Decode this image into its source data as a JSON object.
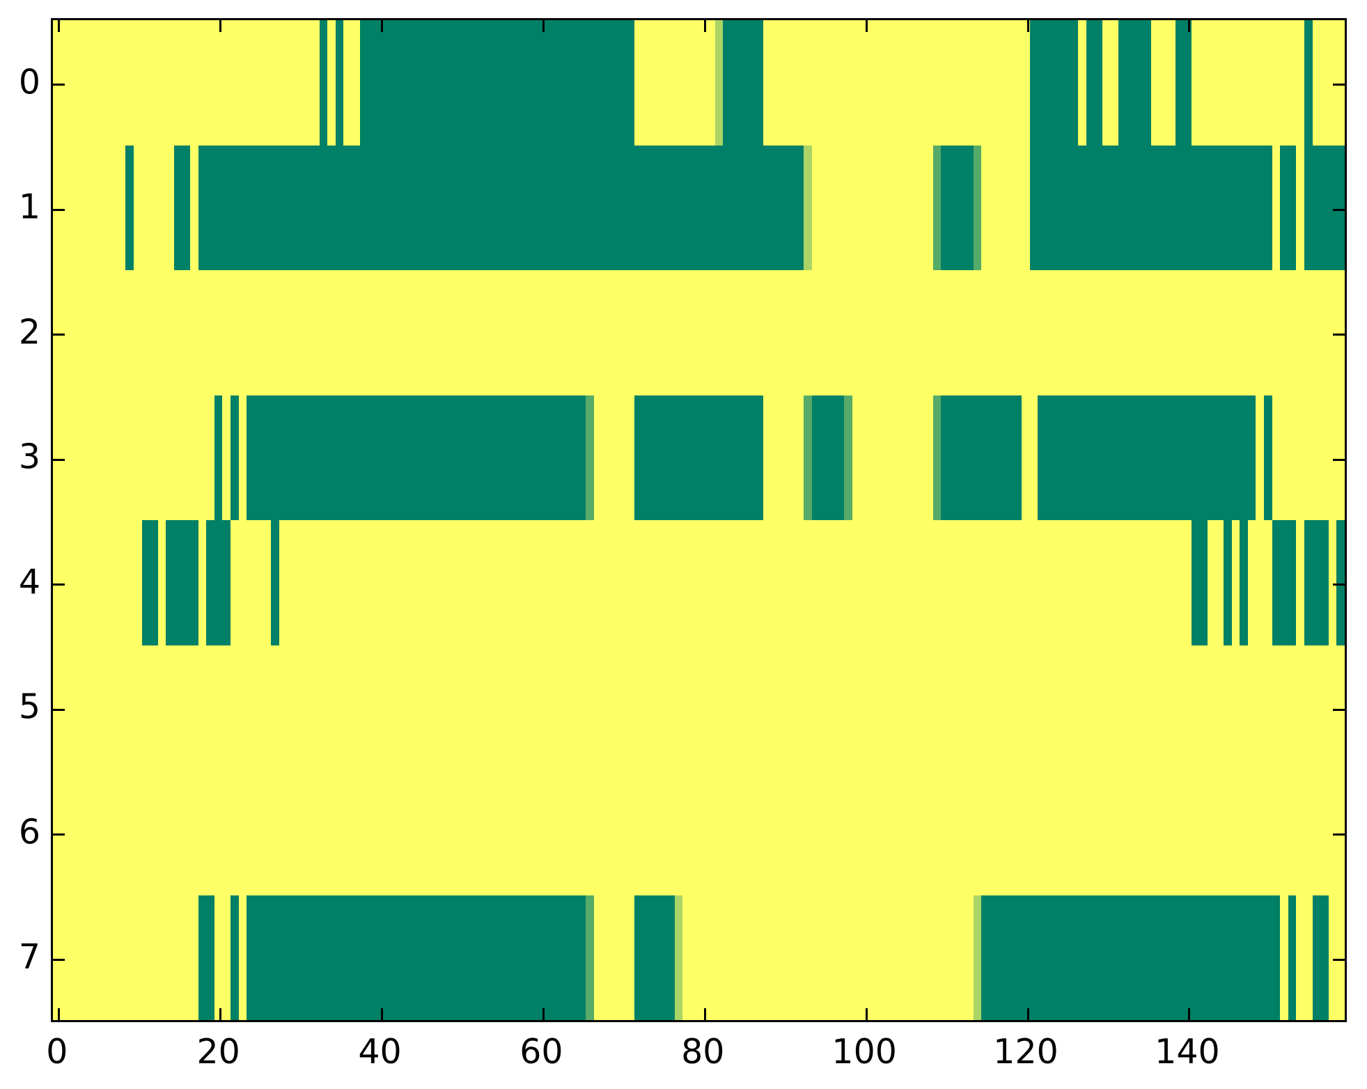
{
  "chart_data": {
    "type": "heatmap",
    "title": "",
    "xlabel": "",
    "ylabel": "",
    "n_cols": 160,
    "n_rows": 8,
    "xlim": [
      -0.5,
      159.5
    ],
    "ylim": [
      7.5,
      -0.5
    ],
    "grid": false,
    "legend": false,
    "x_tick_labels": [
      "0",
      "20",
      "40",
      "60",
      "80",
      "100",
      "120",
      "140"
    ],
    "x_tick_values": [
      0,
      20,
      40,
      60,
      80,
      100,
      120,
      140
    ],
    "y_tick_labels": [
      "0",
      "1",
      "2",
      "3",
      "4",
      "5",
      "6",
      "7"
    ],
    "y_tick_values": [
      0,
      1,
      2,
      3,
      4,
      5,
      6,
      7
    ],
    "colors": {
      "figure_background": "#ffffff",
      "cell_high": "#ffff66",
      "cell_low": "#008066",
      "cell_mid_low": "#55ab67",
      "cell_mid_high": "#abd467",
      "axis": "#000000"
    },
    "level_color_keys": {
      "full": "cell_low",
      "mid": "cell_mid_low",
      "light": "cell_mid_high"
    },
    "rows": [
      {
        "y": 0,
        "segments": [
          {
            "start": 33,
            "end": 33,
            "level": "full"
          },
          {
            "start": 35,
            "end": 35,
            "level": "full"
          },
          {
            "start": 38,
            "end": 71,
            "level": "full"
          },
          {
            "start": 82,
            "end": 82,
            "level": "light"
          },
          {
            "start": 83,
            "end": 87,
            "level": "full"
          },
          {
            "start": 121,
            "end": 126,
            "level": "full"
          },
          {
            "start": 128,
            "end": 129,
            "level": "full"
          },
          {
            "start": 132,
            "end": 135,
            "level": "full"
          },
          {
            "start": 139,
            "end": 140,
            "level": "full"
          },
          {
            "start": 155,
            "end": 155,
            "level": "full"
          }
        ]
      },
      {
        "y": 1,
        "segments": [
          {
            "start": 9,
            "end": 9,
            "level": "full"
          },
          {
            "start": 15,
            "end": 16,
            "level": "full"
          },
          {
            "start": 18,
            "end": 92,
            "level": "full"
          },
          {
            "start": 93,
            "end": 93,
            "level": "light"
          },
          {
            "start": 109,
            "end": 109,
            "level": "mid"
          },
          {
            "start": 110,
            "end": 113,
            "level": "full"
          },
          {
            "start": 114,
            "end": 114,
            "level": "mid"
          },
          {
            "start": 121,
            "end": 150,
            "level": "full"
          },
          {
            "start": 152,
            "end": 153,
            "level": "full"
          },
          {
            "start": 155,
            "end": 159,
            "level": "full"
          }
        ]
      },
      {
        "y": 2,
        "segments": []
      },
      {
        "y": 3,
        "segments": [
          {
            "start": 20,
            "end": 20,
            "level": "full"
          },
          {
            "start": 22,
            "end": 22,
            "level": "full"
          },
          {
            "start": 24,
            "end": 65,
            "level": "full"
          },
          {
            "start": 66,
            "end": 66,
            "level": "mid"
          },
          {
            "start": 72,
            "end": 87,
            "level": "full"
          },
          {
            "start": 93,
            "end": 93,
            "level": "mid"
          },
          {
            "start": 94,
            "end": 97,
            "level": "full"
          },
          {
            "start": 98,
            "end": 98,
            "level": "mid"
          },
          {
            "start": 109,
            "end": 109,
            "level": "mid"
          },
          {
            "start": 110,
            "end": 119,
            "level": "full"
          },
          {
            "start": 122,
            "end": 148,
            "level": "full"
          },
          {
            "start": 150,
            "end": 150,
            "level": "full"
          }
        ]
      },
      {
        "y": 4,
        "segments": [
          {
            "start": 11,
            "end": 12,
            "level": "full"
          },
          {
            "start": 14,
            "end": 17,
            "level": "full"
          },
          {
            "start": 19,
            "end": 21,
            "level": "full"
          },
          {
            "start": 27,
            "end": 27,
            "level": "full"
          },
          {
            "start": 141,
            "end": 142,
            "level": "full"
          },
          {
            "start": 145,
            "end": 145,
            "level": "full"
          },
          {
            "start": 147,
            "end": 147,
            "level": "full"
          },
          {
            "start": 151,
            "end": 153,
            "level": "full"
          },
          {
            "start": 155,
            "end": 157,
            "level": "full"
          },
          {
            "start": 159,
            "end": 159,
            "level": "full"
          }
        ]
      },
      {
        "y": 5,
        "segments": []
      },
      {
        "y": 6,
        "segments": []
      },
      {
        "y": 7,
        "segments": [
          {
            "start": 18,
            "end": 19,
            "level": "full"
          },
          {
            "start": 22,
            "end": 22,
            "level": "full"
          },
          {
            "start": 24,
            "end": 65,
            "level": "full"
          },
          {
            "start": 66,
            "end": 66,
            "level": "mid"
          },
          {
            "start": 72,
            "end": 76,
            "level": "full"
          },
          {
            "start": 77,
            "end": 77,
            "level": "light"
          },
          {
            "start": 114,
            "end": 114,
            "level": "light"
          },
          {
            "start": 115,
            "end": 151,
            "level": "full"
          },
          {
            "start": 153,
            "end": 153,
            "level": "full"
          },
          {
            "start": 156,
            "end": 157,
            "level": "full"
          }
        ]
      }
    ]
  }
}
